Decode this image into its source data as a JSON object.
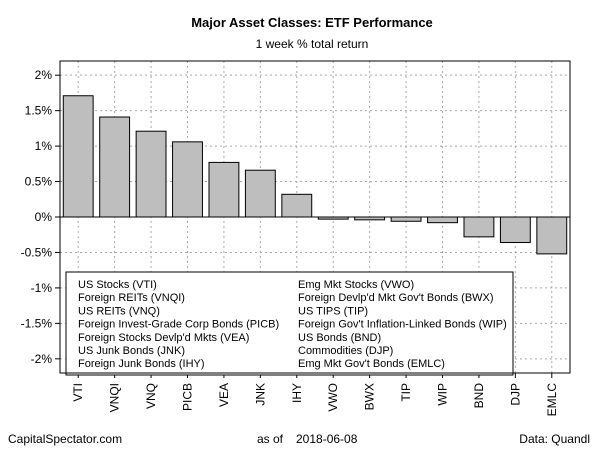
{
  "chart_data": {
    "type": "bar",
    "title": "Major Asset Classes: ETF Performance",
    "subtitle": "1 week % total return",
    "categories": [
      "VTI",
      "VNQI",
      "VNQ",
      "PICB",
      "VEA",
      "JNK",
      "IHY",
      "VWO",
      "BWX",
      "TIP",
      "WIP",
      "BND",
      "DJP",
      "EMLC"
    ],
    "values": [
      1.71,
      1.41,
      1.21,
      1.06,
      0.77,
      0.66,
      0.32,
      -0.03,
      -0.04,
      -0.06,
      -0.08,
      -0.28,
      -0.36,
      -0.52
    ],
    "ylim": [
      -2.2,
      2.2
    ],
    "yticks": [
      2,
      1.5,
      1,
      0.5,
      0,
      -0.5,
      -1,
      -1.5,
      -2
    ],
    "ytick_labels": [
      "2%",
      "1.5%",
      "1%",
      "0.5%",
      "0%",
      "-0.5%",
      "-1%",
      "-1.5%",
      "-2%"
    ],
    "grid": true,
    "colors": {
      "bar": "#bebebe",
      "bar_stroke": "#000000",
      "grid": "#a9a9a9"
    },
    "legend": {
      "position": "bottom-left",
      "columns": [
        [
          "US Stocks (VTI)",
          "Foreign REITs (VNQI)",
          "US REITs (VNQ)",
          "Foreign Invest-Grade Corp Bonds (PICB)",
          "Foreign Stocks Devlp'd Mkts (VEA)",
          "US Junk Bonds (JNK)",
          "Foreign Junk Bonds (IHY)"
        ],
        [
          "Emg Mkt Stocks (VWO)",
          "Foreign Devlp'd Mkt Gov't Bonds (BWX)",
          "US TIPS (TIP)",
          "Foreign Gov't Inflation-Linked Bonds (WIP)",
          "US Bonds (BND)",
          "Commodities (DJP)",
          "Emg Mkt Gov't Bonds (EMLC)"
        ]
      ]
    }
  },
  "footer": {
    "source_left": "CapitalSpectator.com",
    "as_of_label": "as of",
    "date": "2018-06-08",
    "data_credit": "Data: Quandl"
  }
}
